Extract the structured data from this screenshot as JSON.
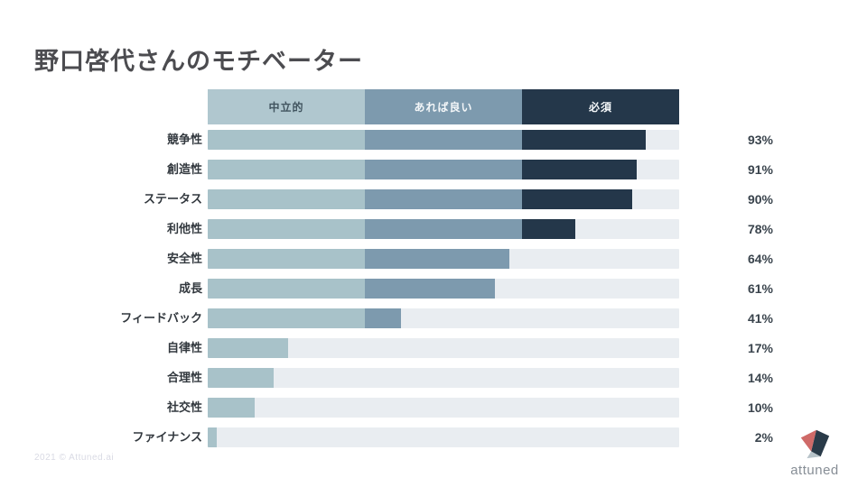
{
  "page": {
    "title": "野口啓代さんのモチベーター",
    "copyright": "2021 © Attuned.ai",
    "logo_text": "attuned"
  },
  "legend": {
    "position": "top",
    "segments": [
      {
        "label": "中立的",
        "color": "#b0c7cf",
        "text_color": "#41545f"
      },
      {
        "label": "あれば良い",
        "color": "#7d9aae",
        "text_color": "#f4f7f9"
      },
      {
        "label": "必須",
        "color": "#24374a",
        "text_color": "#f4f7f9"
      }
    ]
  },
  "chart_data": {
    "type": "bar",
    "orientation": "horizontal",
    "title": "野口啓代さんのモチベーター",
    "xlim": [
      0,
      100
    ],
    "grid": false,
    "legend_position": "top",
    "categories": [
      "競争性",
      "創造性",
      "ステータス",
      "利他性",
      "安全性",
      "成長",
      "フィードバック",
      "自律性",
      "合理性",
      "社交性",
      "ファイナンス"
    ],
    "values": [
      93,
      91,
      90,
      78,
      64,
      61,
      41,
      17,
      14,
      10,
      2
    ],
    "value_labels": [
      "93%",
      "91%",
      "90%",
      "78%",
      "64%",
      "61%",
      "41%",
      "17%",
      "14%",
      "10%",
      "2%"
    ],
    "zones": [
      {
        "label": "中立的",
        "range": [
          0,
          33.33
        ],
        "color": "#a8c2c9"
      },
      {
        "label": "あれば良い",
        "range": [
          33.33,
          66.67
        ],
        "color": "#7d9aae"
      },
      {
        "label": "必須",
        "range": [
          66.67,
          100
        ],
        "color": "#24374a"
      }
    ],
    "track_color": "#e9edf1"
  },
  "colors": {
    "background": "#ffffff",
    "title_text": "#4c4c50",
    "row_label_text": "#32383e",
    "value_text": "#3a444d",
    "copyright_text": "#d9dae4",
    "logo_text": "#878e96",
    "logo_red": "#cf6a68",
    "logo_navy": "#2a3b49",
    "logo_gray": "#b7c3c9"
  }
}
